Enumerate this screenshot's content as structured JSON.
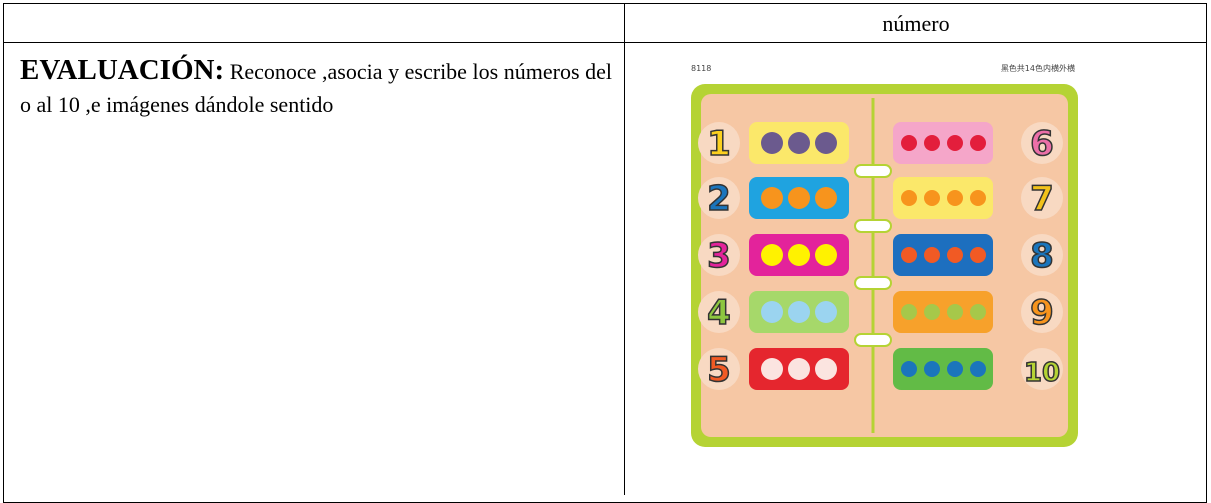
{
  "header": {
    "column_2": "número"
  },
  "evaluation": {
    "label": "EVALUACIÓN:",
    "text": "Reconoce ,asocia y escribe los números del o al 10 ,e imágenes dándole sentido"
  },
  "puzzle": {
    "code": "8118",
    "note": "黑色共14色内横外横",
    "left_numbers": [
      1,
      2,
      3,
      4,
      5
    ],
    "right_numbers": [
      6,
      7,
      8,
      9,
      10
    ]
  }
}
